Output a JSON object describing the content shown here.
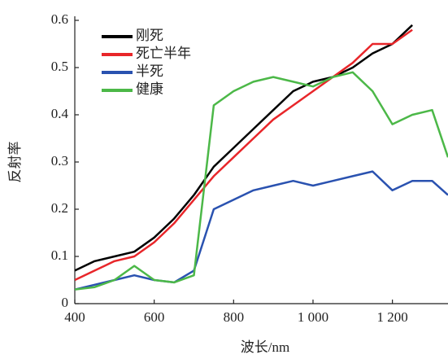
{
  "chart_data": {
    "type": "line",
    "x_label": "波长/nm",
    "y_label": "反射率",
    "x": [
      400,
      450,
      500,
      550,
      600,
      650,
      700,
      750,
      800,
      850,
      900,
      950,
      1000,
      1050,
      1100,
      1150,
      1200,
      1250,
      1300,
      1340
    ],
    "series": [
      {
        "name": "刚死",
        "color": "#000000",
        "values": [
          0.07,
          0.09,
          0.1,
          0.11,
          0.14,
          0.18,
          0.23,
          0.29,
          0.33,
          0.37,
          0.41,
          0.45,
          0.47,
          0.48,
          0.5,
          0.53,
          0.55,
          0.59,
          null,
          null
        ]
      },
      {
        "name": "死亡半年",
        "color": "#e8262a",
        "values": [
          0.05,
          0.07,
          0.09,
          0.1,
          0.13,
          0.17,
          0.22,
          0.27,
          0.31,
          0.35,
          0.39,
          0.42,
          0.45,
          0.48,
          0.51,
          0.55,
          0.55,
          0.58,
          null,
          null
        ]
      },
      {
        "name": "半死",
        "color": "#2a52b0",
        "values": [
          0.03,
          0.04,
          0.05,
          0.06,
          0.05,
          0.045,
          0.07,
          0.2,
          0.22,
          0.24,
          0.25,
          0.26,
          0.25,
          0.26,
          0.27,
          0.28,
          0.24,
          0.26,
          0.26,
          0.23
        ]
      },
      {
        "name": "健康",
        "color": "#4cb848",
        "values": [
          0.03,
          0.035,
          0.05,
          0.08,
          0.05,
          0.045,
          0.06,
          0.42,
          0.45,
          0.47,
          0.48,
          0.47,
          0.46,
          0.48,
          0.49,
          0.45,
          0.38,
          0.4,
          0.41,
          0.31
        ]
      }
    ],
    "xlim": [
      400,
      1340
    ],
    "ylim": [
      0,
      0.6
    ],
    "xticks": [
      400,
      600,
      800,
      {
        "value": 1000,
        "label": "1 000"
      },
      {
        "value": 1200,
        "label": "1 200"
      }
    ],
    "yticks": [
      0,
      0.1,
      0.2,
      0.3,
      0.4,
      0.5,
      0.6
    ],
    "legend": "upper-left"
  }
}
